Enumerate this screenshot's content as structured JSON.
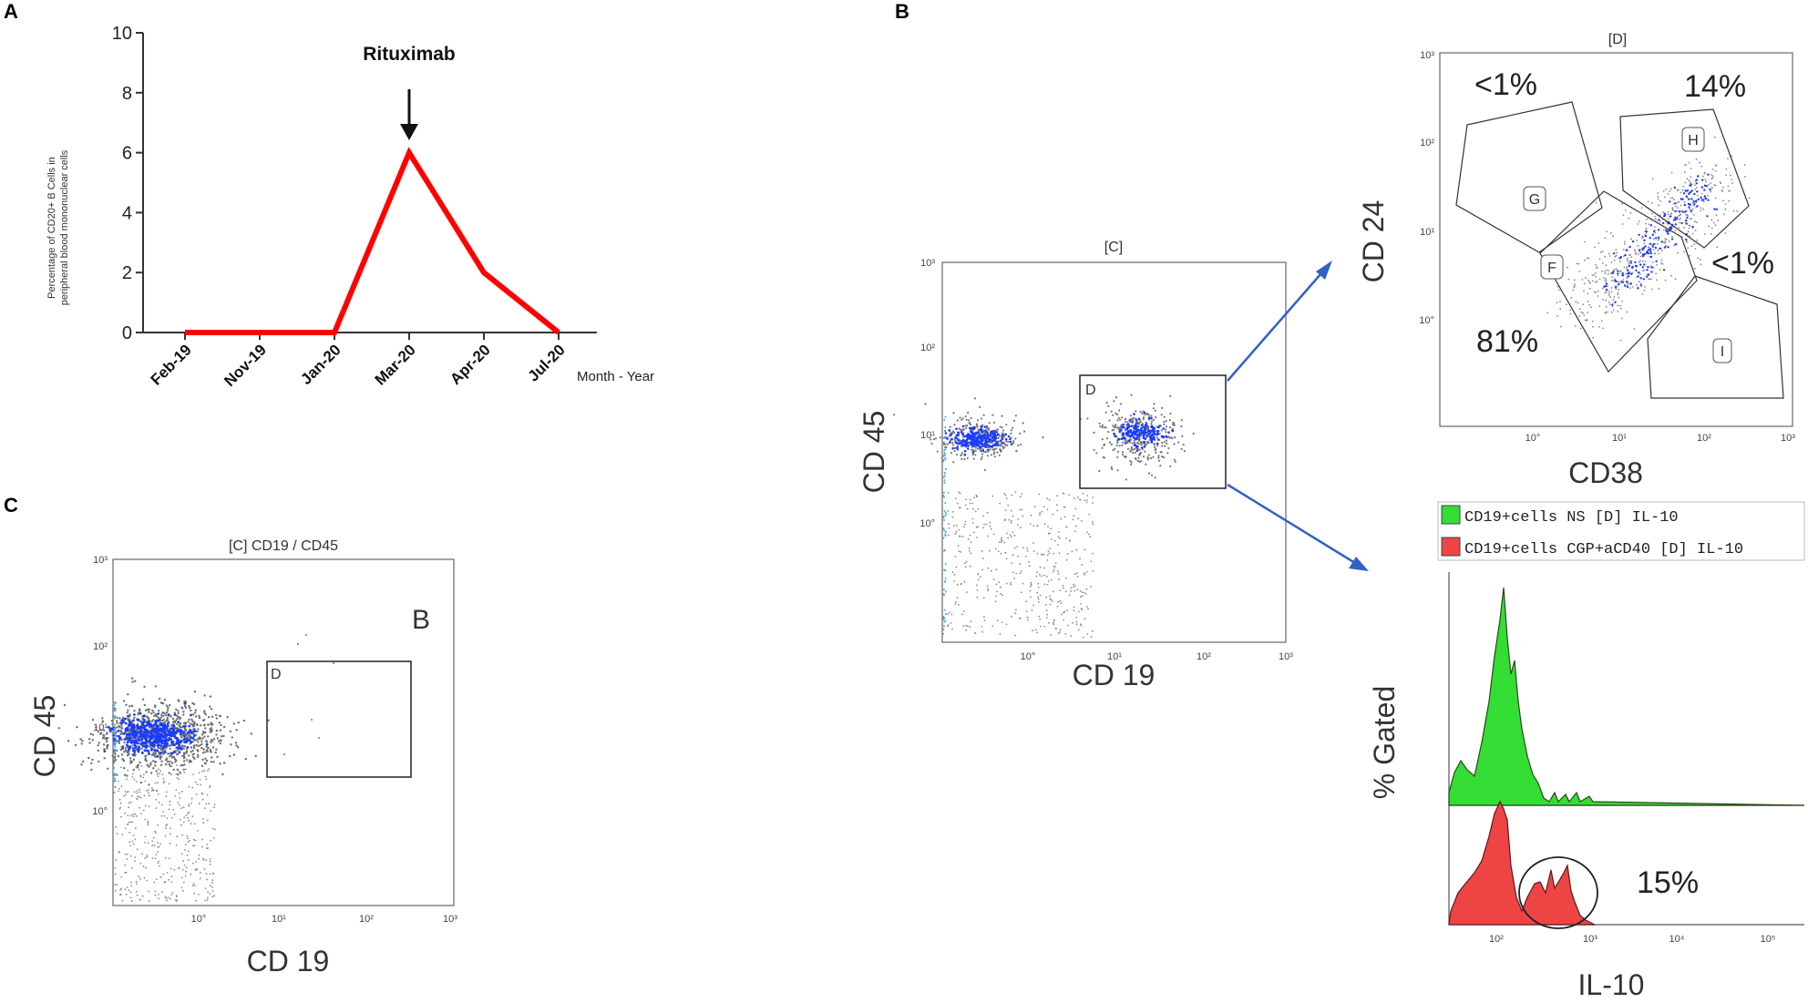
{
  "chart_data": [
    {
      "panel": "A",
      "type": "line",
      "categories": [
        "Feb-19",
        "Nov-19",
        "Jan-20",
        "Mar-20",
        "Apr-20",
        "Jul-20"
      ],
      "values": [
        0,
        0,
        0,
        6,
        2,
        0
      ],
      "ylim": [
        0,
        10
      ],
      "yticks": [
        "0",
        "2",
        "4",
        "6",
        "8",
        "10"
      ],
      "ylabel_line1": "Percentage of CD20+ B Cells in",
      "ylabel_line2": "peripheral blood mononuclear cells",
      "xlabel": "Month - Year",
      "annotation": "Rituximab",
      "line_color": "#ff0000"
    },
    {
      "panel": "B-scatter",
      "type": "scatter",
      "title": "[C]",
      "xlabel": "CD 19",
      "ylabel": "CD 45",
      "gate": "D",
      "ticks": [
        "10°",
        "10¹",
        "10²",
        "10³"
      ]
    },
    {
      "panel": "B-gates",
      "type": "scatter",
      "title": "[D]",
      "xlabel": "CD38",
      "ylabel": "CD 24",
      "gates": [
        {
          "name": "G",
          "percent": "<1%"
        },
        {
          "name": "H",
          "percent": "14%"
        },
        {
          "name": "F",
          "percent": "81%"
        },
        {
          "name": "I",
          "percent": "<1%"
        }
      ],
      "ticks": [
        "10°",
        "10¹",
        "10²",
        "10³"
      ]
    },
    {
      "panel": "B-histogram",
      "type": "area",
      "xlabel": "IL-10",
      "ylabel": "% Gated",
      "series": [
        {
          "name": "CD19+cells NS [D] IL-10",
          "color": "#33dd33"
        },
        {
          "name": "CD19+cells CGP+aCD40 [D] IL-10",
          "color": "#ee4444"
        }
      ],
      "annotation": "15%",
      "ticks": [
        "10²",
        "10³",
        "10⁴",
        "10⁵"
      ]
    },
    {
      "panel": "C",
      "type": "scatter",
      "title": "[C] CD19 / CD45",
      "xlabel": "CD 19",
      "ylabel": "CD 45",
      "gate": "D",
      "corner_label": "B",
      "ticks": [
        "10°",
        "10¹",
        "10²",
        "10³"
      ]
    }
  ],
  "panel_letters": [
    "A",
    "B",
    "C"
  ],
  "colors": {
    "dot": "#888888",
    "dense": "#1a3cff",
    "arrow": "#2f63c4"
  }
}
